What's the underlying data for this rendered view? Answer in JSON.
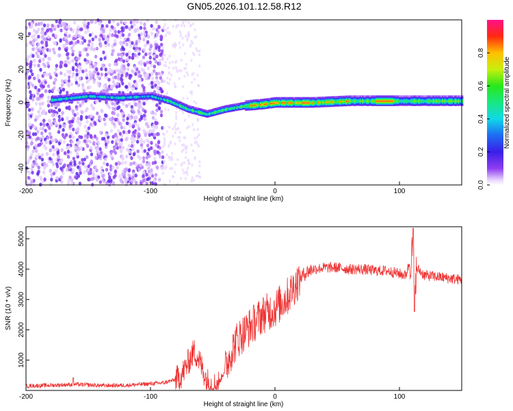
{
  "title": "GN05.2026.101.12.58.R12",
  "spectrogram": {
    "type": "heatmap",
    "xlabel": "Height of straight line (km)",
    "ylabel": "Frequency (Hz)",
    "xlim": [
      -200,
      150
    ],
    "ylim": [
      -50,
      50
    ],
    "xticks": [
      -200,
      -100,
      0,
      100
    ],
    "yticks": [
      40,
      20,
      0,
      -20,
      -40
    ],
    "colorbar": {
      "label": "Normalized spectral amplitude",
      "ticks": [
        0.0,
        0.2,
        0.4,
        0.6,
        0.8
      ],
      "range": [
        0,
        1
      ]
    },
    "ridge": [
      {
        "x": -175,
        "y": 2
      },
      {
        "x": -150,
        "y": 4
      },
      {
        "x": -125,
        "y": 3
      },
      {
        "x": -100,
        "y": 4
      },
      {
        "x": -85,
        "y": 1
      },
      {
        "x": -70,
        "y": -4
      },
      {
        "x": -55,
        "y": -7
      },
      {
        "x": -40,
        "y": -4
      },
      {
        "x": -25,
        "y": -2
      },
      {
        "x": -10,
        "y": -1
      },
      {
        "x": 0,
        "y": 0
      },
      {
        "x": 30,
        "y": 0
      },
      {
        "x": 60,
        "y": 1
      },
      {
        "x": 90,
        "y": 1
      },
      {
        "x": 110,
        "y": 1
      },
      {
        "x": 150,
        "y": 1
      }
    ]
  },
  "chart_data": {
    "type": "line",
    "xlabel": "Height of straight line (km)",
    "ylabel": "SNR (10 * v/v)",
    "xlim": [
      -200,
      150
    ],
    "ylim": [
      0,
      5400
    ],
    "xticks": [
      -200,
      -100,
      0,
      100
    ],
    "yticks": [
      1000,
      2000,
      3000,
      4000,
      5000
    ],
    "color": "#ee3333",
    "series": [
      {
        "name": "SNR",
        "x": [
          -200,
          -180,
          -160,
          -140,
          -120,
          -100,
          -90,
          -80,
          -75,
          -70,
          -65,
          -62,
          -58,
          -55,
          -50,
          -45,
          -40,
          -35,
          -30,
          -25,
          -20,
          -15,
          -10,
          -5,
          0,
          5,
          10,
          15,
          20,
          25,
          30,
          40,
          50,
          60,
          70,
          80,
          90,
          100,
          105,
          108,
          110,
          112,
          115,
          120,
          130,
          140,
          150
        ],
        "values": [
          150,
          170,
          200,
          160,
          170,
          220,
          250,
          350,
          500,
          900,
          1300,
          1100,
          700,
          350,
          150,
          250,
          700,
          1300,
          1700,
          1900,
          2100,
          2300,
          2500,
          2600,
          2700,
          2900,
          3100,
          3400,
          3700,
          3900,
          4000,
          4050,
          4050,
          4000,
          4000,
          3950,
          3950,
          3850,
          3800,
          4200,
          4500,
          3800,
          4000,
          3800,
          3750,
          3700,
          3650
        ]
      }
    ]
  }
}
